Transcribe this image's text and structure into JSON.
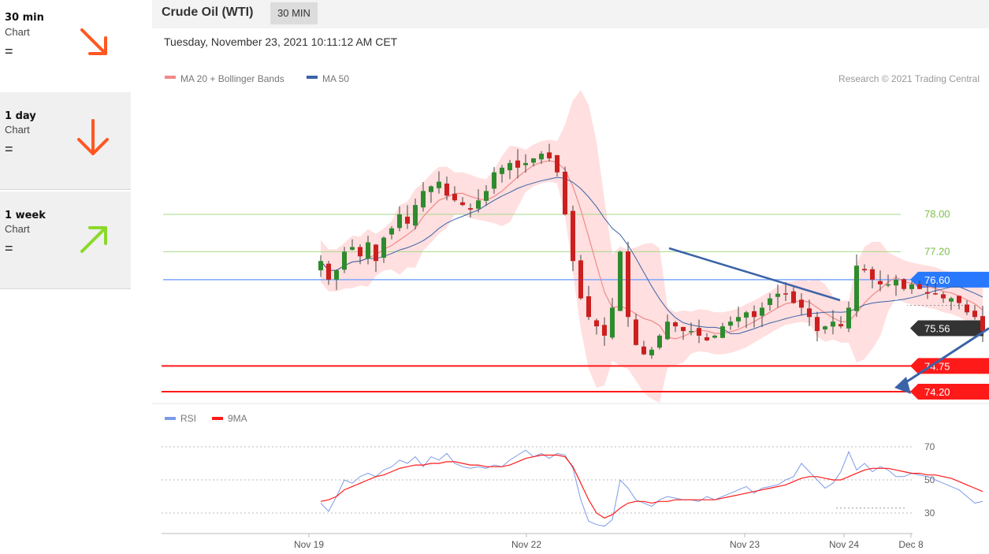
{
  "sidebar": {
    "items": [
      {
        "title": "30 min",
        "sub": "Chart",
        "rating": "=",
        "direction": "down-right",
        "color": "#ff5722"
      },
      {
        "title": "1 day",
        "sub": "Chart",
        "rating": "=",
        "direction": "down",
        "color": "#ff5722"
      },
      {
        "title": "1 week",
        "sub": "Chart",
        "rating": "=",
        "direction": "up-right",
        "color": "#8bd92b"
      }
    ]
  },
  "header": {
    "title": "Crude Oil (WTI)",
    "timeframe": "30 MIN"
  },
  "date": "Tuesday, November 23, 2021 10:11:12 AM CET",
  "chart_data": [
    {
      "type": "line",
      "subtype": "candlestick",
      "title": "",
      "xlabel": "",
      "ylabel": "",
      "ylim": [
        73.6,
        79.1
      ],
      "grid": false,
      "legend": {
        "placement": "top-left",
        "entries": [
          {
            "name": "MA 20 + Bollinger Bands",
            "color": "#f08a8a"
          },
          {
            "name": "MA 50",
            "color": "#3b63a8"
          }
        ]
      },
      "credit": "Research © 2021 Trading Central",
      "x_ticks": [
        "Nov 19",
        "Nov 22",
        "Nov 23",
        "Nov 24",
        "Dec 8"
      ],
      "colors": {
        "up": "#2e8b2e",
        "down": "#cc1f1f",
        "band": "#ffd9d9",
        "ma20": "#f08a8a",
        "ma50": "#3b63a8"
      },
      "levels": [
        {
          "value": 78.0,
          "label": "78.00",
          "kind": "resistance-text",
          "color": "#7cbf4a"
        },
        {
          "value": 77.2,
          "label": "77.20",
          "kind": "resistance-text",
          "color": "#7cbf4a"
        },
        {
          "value": 76.6,
          "label": "76.60",
          "kind": "pivot",
          "color": "#2979ff"
        },
        {
          "value": 75.56,
          "label": "75.56",
          "kind": "last",
          "color": "#333333"
        },
        {
          "value": 74.75,
          "label": "74.75",
          "kind": "support",
          "color": "#ff1a1a"
        },
        {
          "value": 74.2,
          "label": "74.20",
          "kind": "support",
          "color": "#ff1a1a"
        }
      ],
      "close": [
        77.0,
        76.6,
        76.8,
        77.2,
        77.3,
        77.1,
        77.4,
        77.0,
        77.5,
        77.7,
        78.0,
        77.8,
        78.2,
        78.5,
        78.6,
        78.7,
        78.4,
        78.3,
        78.2,
        78.1,
        78.3,
        78.5,
        78.9,
        79.0,
        79.1,
        79.0,
        79.1,
        79.2,
        79.3,
        79.2,
        78.9,
        78.0,
        77.0,
        76.2,
        75.8,
        75.6,
        75.4,
        76.0,
        77.2,
        75.8,
        75.2,
        75.0,
        75.1,
        75.4,
        75.7,
        75.6,
        75.5,
        75.5,
        75.4,
        75.3,
        75.4,
        75.6,
        75.7,
        75.8,
        75.9,
        75.8,
        76.0,
        76.2,
        76.3,
        76.3,
        76.1,
        76.0,
        75.8,
        75.5,
        75.6,
        75.7,
        75.6,
        76.0,
        76.9,
        76.8,
        76.6,
        76.5,
        76.5,
        76.6,
        76.4,
        76.5,
        76.4,
        76.3,
        76.3,
        76.2,
        76.2,
        76.1,
        75.9,
        75.8,
        75.5
      ]
    },
    {
      "type": "line",
      "title": "",
      "ylim": [
        25,
        75
      ],
      "legend": {
        "placement": "top-left",
        "entries": [
          {
            "name": "RSI",
            "color": "#7c9be8"
          },
          {
            "name": "9MA",
            "color": "#ff1a1a"
          }
        ]
      },
      "y_ticks": [
        70,
        50,
        30
      ],
      "series": [
        {
          "name": "RSI",
          "values": [
            36,
            31,
            40,
            50,
            48,
            52,
            54,
            52,
            56,
            58,
            62,
            60,
            64,
            58,
            64,
            62,
            66,
            60,
            58,
            57,
            58,
            57,
            59,
            58,
            62,
            65,
            68,
            64,
            66,
            63,
            66,
            65,
            57,
            38,
            25,
            23,
            22,
            26,
            50,
            45,
            38,
            36,
            34,
            38,
            40,
            39,
            38,
            38,
            37,
            40,
            38,
            40,
            42,
            44,
            46,
            42,
            45,
            46,
            47,
            50,
            52,
            60,
            55,
            50,
            45,
            48,
            55,
            67,
            56,
            60,
            55,
            58,
            56,
            52,
            52,
            54,
            53,
            52,
            50,
            48,
            46,
            44,
            40,
            36,
            37
          ]
        },
        {
          "name": "9MA",
          "values": [
            37,
            38,
            40,
            44,
            46,
            48,
            50,
            52,
            53,
            55,
            57,
            58,
            59,
            59,
            60,
            60,
            61,
            61,
            60,
            59,
            59,
            58,
            58,
            58,
            59,
            61,
            63,
            64,
            65,
            65,
            65,
            64,
            58,
            48,
            38,
            30,
            27,
            29,
            33,
            36,
            37,
            37,
            36,
            37,
            37,
            38,
            38,
            38,
            38,
            38,
            38,
            39,
            40,
            41,
            42,
            43,
            44,
            45,
            46,
            47,
            49,
            51,
            52,
            52,
            51,
            50,
            50,
            52,
            54,
            56,
            57,
            57,
            57,
            56,
            55,
            54,
            54,
            53,
            53,
            52,
            51,
            49,
            47,
            45,
            43
          ]
        }
      ]
    }
  ]
}
